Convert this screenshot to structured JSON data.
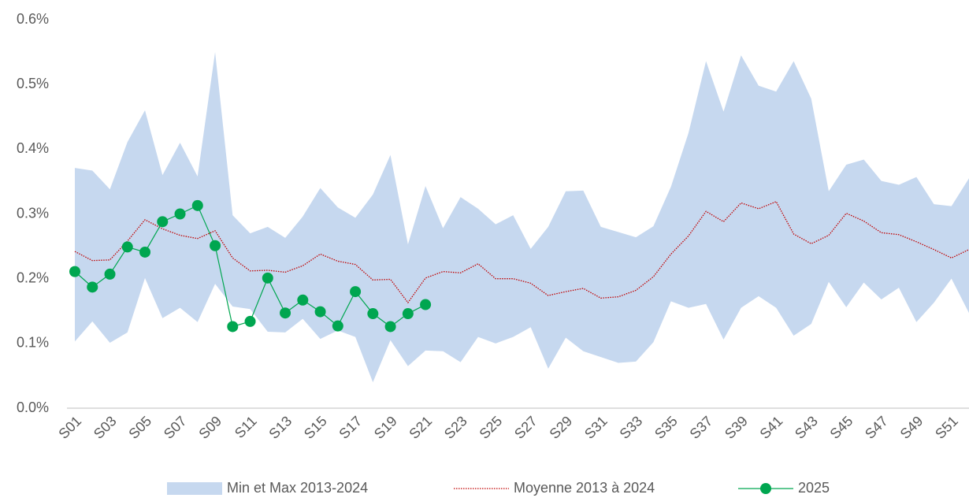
{
  "chart_data": {
    "type": "line",
    "categories": [
      "S01",
      null,
      "S03",
      null,
      "S05",
      null,
      "S07",
      null,
      "S09",
      null,
      "S11",
      null,
      "S13",
      null,
      "S15",
      null,
      "S17",
      null,
      "S19",
      null,
      "S21",
      null,
      "S23",
      null,
      "S25",
      null,
      "S27",
      null,
      "S29",
      null,
      "S31",
      null,
      "S33",
      null,
      "S35",
      null,
      "S37",
      null,
      "S39",
      null,
      "S41",
      null,
      "S43",
      null,
      "S45",
      null,
      "S47",
      null,
      "S49",
      null,
      "S51",
      null
    ],
    "ylim": [
      0,
      0.6
    ],
    "yticks": [
      {
        "value": 0,
        "label": "0.0%"
      },
      {
        "value": 0.1,
        "label": "0.1%"
      },
      {
        "value": 0.2,
        "label": "0.2%"
      },
      {
        "value": 0.3,
        "label": "0.3%"
      },
      {
        "value": 0.4,
        "label": "0.4%"
      },
      {
        "value": 0.5,
        "label": "0.5%"
      },
      {
        "value": 0.6,
        "label": "0.6%"
      }
    ],
    "grid": false,
    "legend": "bottom",
    "series": [
      {
        "name": "Min et Max 2013-2024",
        "style": "band",
        "color": "#c6d8ef",
        "values": [
          0.371,
          0.367,
          0.338,
          0.411,
          0.46,
          0.36,
          0.41,
          0.358,
          0.55,
          0.298,
          0.27,
          0.28,
          0.263,
          0.296,
          0.34,
          0.31,
          0.294,
          0.33,
          0.391,
          0.253,
          0.343,
          0.278,
          0.326,
          0.308,
          0.284,
          0.298,
          0.246,
          0.28,
          0.335,
          0.336,
          0.28,
          0.272,
          0.264,
          0.281,
          0.342,
          0.425,
          0.536,
          0.458,
          0.545,
          0.498,
          0.489,
          0.536,
          0.478,
          0.335,
          0.376,
          0.384,
          0.351,
          0.345,
          0.357,
          0.315,
          0.312,
          0.355
        ],
        "lower": [
          0.103,
          0.134,
          0.101,
          0.117,
          0.201,
          0.139,
          0.155,
          0.133,
          0.192,
          0.157,
          0.153,
          0.118,
          0.117,
          0.138,
          0.107,
          0.12,
          0.11,
          0.04,
          0.105,
          0.065,
          0.089,
          0.088,
          0.071,
          0.11,
          0.1,
          0.11,
          0.125,
          0.061,
          0.109,
          0.088,
          0.079,
          0.07,
          0.072,
          0.102,
          0.165,
          0.155,
          0.161,
          0.106,
          0.155,
          0.173,
          0.155,
          0.112,
          0.13,
          0.195,
          0.156,
          0.194,
          0.168,
          0.186,
          0.133,
          0.163,
          0.2,
          0.147
        ]
      },
      {
        "name": "Moyenne 2013 à 2024",
        "style": "dotted",
        "color": "#c00000",
        "values": [
          0.242,
          0.228,
          0.229,
          0.258,
          0.291,
          0.277,
          0.267,
          0.262,
          0.274,
          0.232,
          0.212,
          0.213,
          0.21,
          0.22,
          0.238,
          0.227,
          0.222,
          0.198,
          0.199,
          0.163,
          0.201,
          0.211,
          0.209,
          0.223,
          0.2,
          0.2,
          0.193,
          0.174,
          0.18,
          0.185,
          0.17,
          0.172,
          0.182,
          0.203,
          0.238,
          0.266,
          0.304,
          0.288,
          0.317,
          0.308,
          0.319,
          0.269,
          0.254,
          0.267,
          0.301,
          0.289,
          0.271,
          0.268,
          0.257,
          0.245,
          0.232,
          0.245
        ]
      },
      {
        "name": "2025",
        "style": "marker",
        "color": "#00a650",
        "values": [
          0.211,
          0.187,
          0.207,
          0.249,
          0.241,
          0.288,
          0.3,
          0.313,
          0.251,
          0.126,
          0.134,
          0.201,
          0.147,
          0.167,
          0.149,
          0.127,
          0.18,
          0.146,
          0.126,
          0.146,
          0.16,
          null,
          null,
          null,
          null,
          null,
          null,
          null,
          null,
          null,
          null,
          null,
          null,
          null,
          null,
          null,
          null,
          null,
          null,
          null,
          null,
          null,
          null,
          null,
          null,
          null,
          null,
          null,
          null,
          null,
          null,
          null
        ]
      }
    ]
  }
}
